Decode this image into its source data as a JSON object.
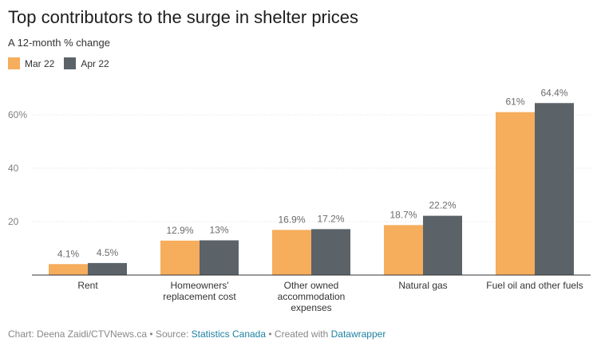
{
  "title": "Top contributors to the surge in shelter prices",
  "subtitle": "A 12-month % change",
  "colors": {
    "mar": "#f6ad5c",
    "apr": "#5b6369",
    "grid": "#e2e2e2",
    "axis": "#333333"
  },
  "footer": {
    "prefix": "Chart: Deena Zaidi/CTVNews.ca • Source:",
    "source_link": "Statistics Canada",
    "middle": "• Created with",
    "tool_link": "Datawrapper"
  },
  "chart_data": {
    "type": "bar",
    "title": "Top contributors to the surge in shelter prices",
    "subtitle": "A 12-month % change",
    "categories": [
      [
        "Rent"
      ],
      [
        "Homeowners'",
        "replacement cost"
      ],
      [
        "Other owned",
        "accommodation",
        "expenses"
      ],
      [
        "Natural gas"
      ],
      [
        "Fuel oil and other fuels"
      ]
    ],
    "series": [
      {
        "name": "Mar 22",
        "values": [
          4.1,
          12.9,
          16.9,
          18.7,
          61.0
        ],
        "labels": [
          "4.1%",
          "12.9%",
          "16.9%",
          "18.7%",
          "61%"
        ]
      },
      {
        "name": "Apr 22",
        "values": [
          4.5,
          13.0,
          17.2,
          22.2,
          64.4
        ],
        "labels": [
          "4.5%",
          "13%",
          "17.2%",
          "22.2%",
          "64.4%"
        ]
      }
    ],
    "yticks": [
      20,
      40,
      60
    ],
    "ytick_labels": [
      "20",
      "40",
      "60%"
    ],
    "ylim": [
      0,
      68
    ],
    "xlabel": "",
    "ylabel": "",
    "legend_position": "top-left",
    "grid": true
  }
}
